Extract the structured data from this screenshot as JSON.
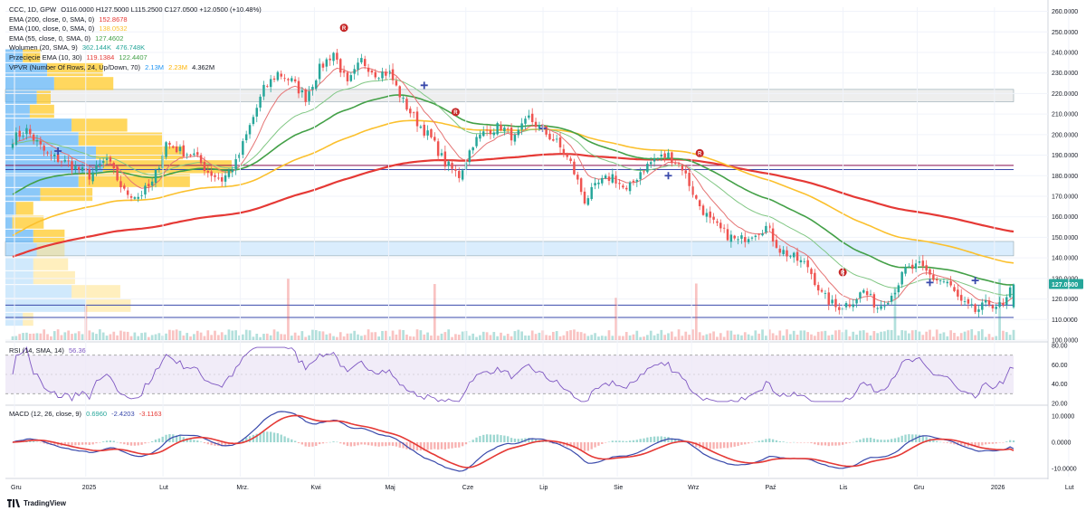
{
  "legend": {
    "main": {
      "label": "CCC, 1D, GPW",
      "ohlc": "O116.0000 H127.5000 L115.2500 C127.0500 +12.0500 (+10.48%)"
    },
    "ema200": {
      "label": "EMA (200, close, 0, SMA, 0)",
      "value": "152.8678",
      "color": "#e53935"
    },
    "ema100": {
      "label": "EMA (100, close, 0, SMA, 0)",
      "value": "138.0532",
      "color": "#fbc02d"
    },
    "ema55": {
      "label": "EMA (55, close, 0, SMA, 0)",
      "value": "127.4602",
      "color": "#43a047"
    },
    "volume": {
      "label": "Wolumen (20, SMA, 9)",
      "v1": "362.144K",
      "v2": "476.748K",
      "color": "#26a69a"
    },
    "cross": {
      "label": "Przecięcie EMA (10, 30)",
      "v1": "119.1384",
      "v2": "122.4407",
      "c1": "#e53935",
      "c2": "#43a047"
    },
    "vpvr": {
      "label": "VPVR (Number Of Rows, 24, Up/Down, 70)",
      "v1": "2.13M",
      "v2": "2.23M",
      "v3": "4.362M"
    }
  },
  "rsi_legend": {
    "label": "RSI (14, SMA, 14)",
    "value": "56.36",
    "color": "#7e57c2"
  },
  "macd_legend": {
    "label": "MACD (12, 26, close, 9)",
    "v1": "0.6960",
    "v2": "-2.4203",
    "v3": "-3.1163"
  },
  "brand": "TradingView",
  "colors": {
    "up": "#26a69a",
    "down": "#ef5350",
    "ema10": "#e57373",
    "ema30": "#81c784",
    "vpvrUp": "#64b5f6",
    "vpvrDown": "#ffca28",
    "rsi": "#7e57c2",
    "macd": "#3949ab",
    "signal": "#e53935"
  },
  "chart_data": [
    {
      "type": "candlestick",
      "symbol": "CCC, 1D, GPW",
      "ylim": [
        100,
        262
      ],
      "y_ticks": [
        100,
        110,
        120,
        130,
        140,
        150,
        160,
        170,
        180,
        190,
        200,
        210,
        220,
        230,
        240,
        250,
        260
      ],
      "y_tick_labels": [
        "100.0000",
        "110.0000",
        "120.0000",
        "130.0000",
        "140.0000",
        "150.0000",
        "160.0000",
        "170.0000",
        "180.0000",
        "190.0000",
        "200.0000",
        "210.0000",
        "220.0000",
        "230.0000",
        "240.0000",
        "250.0000",
        "260.0000"
      ],
      "last_price_label": "127.0500",
      "x_labels": [
        "Gru",
        "2025",
        "Lut",
        "Mrz.",
        "Kwi",
        "Maj",
        "Cze",
        "Lip",
        "Sie",
        "Wrz",
        "Paź",
        "Lis",
        "Gru",
        "2026",
        "Lut"
      ],
      "close_anchors": [
        [
          0,
          198
        ],
        [
          4,
          202
        ],
        [
          10,
          190
        ],
        [
          16,
          186
        ],
        [
          22,
          180
        ],
        [
          27,
          188
        ],
        [
          32,
          172
        ],
        [
          36,
          170
        ],
        [
          40,
          176
        ],
        [
          44,
          196
        ],
        [
          48,
          192
        ],
        [
          52,
          190
        ],
        [
          56,
          182
        ],
        [
          60,
          178
        ],
        [
          64,
          186
        ],
        [
          68,
          204
        ],
        [
          72,
          222
        ],
        [
          76,
          230
        ],
        [
          80,
          226
        ],
        [
          84,
          218
        ],
        [
          88,
          232
        ],
        [
          92,
          240
        ],
        [
          96,
          224
        ],
        [
          100,
          236
        ],
        [
          104,
          230
        ],
        [
          108,
          230
        ],
        [
          112,
          216
        ],
        [
          116,
          206
        ],
        [
          120,
          198
        ],
        [
          124,
          186
        ],
        [
          128,
          180
        ],
        [
          132,
          196
        ],
        [
          136,
          202
        ],
        [
          140,
          204
        ],
        [
          144,
          198
        ],
        [
          148,
          208
        ],
        [
          152,
          202
        ],
        [
          156,
          196
        ],
        [
          160,
          186
        ],
        [
          164,
          168
        ],
        [
          168,
          176
        ],
        [
          172,
          180
        ],
        [
          176,
          172
        ],
        [
          180,
          182
        ],
        [
          184,
          188
        ],
        [
          188,
          190
        ],
        [
          192,
          184
        ],
        [
          196,
          168
        ],
        [
          200,
          158
        ],
        [
          204,
          152
        ],
        [
          208,
          148
        ],
        [
          212,
          152
        ],
        [
          216,
          155
        ],
        [
          220,
          144
        ],
        [
          224,
          140
        ],
        [
          228,
          136
        ],
        [
          232,
          122
        ],
        [
          236,
          116
        ],
        [
          240,
          118
        ],
        [
          244,
          124
        ],
        [
          248,
          116
        ],
        [
          252,
          122
        ],
        [
          256,
          134
        ],
        [
          260,
          136
        ],
        [
          264,
          130
        ],
        [
          268,
          128
        ],
        [
          272,
          118
        ],
        [
          276,
          114
        ],
        [
          280,
          118
        ],
        [
          284,
          116
        ],
        [
          287,
          127.05
        ]
      ],
      "ema200_series": {
        "name": "EMA 200",
        "last": 152.8678
      },
      "ema100_series": {
        "name": "EMA 100",
        "last": 138.0532
      },
      "ema55_series": {
        "name": "EMA 55",
        "last": 127.4602
      },
      "horizontal_levels": [
        {
          "price": 185,
          "color": "#880e4f"
        },
        {
          "price": 183,
          "color": "#3949ab"
        },
        {
          "price": 117,
          "color": "#3949ab"
        },
        {
          "price": 111,
          "color": "#3949ab"
        }
      ],
      "zones": [
        {
          "from": 141,
          "to": 148,
          "color": "#bbdefb"
        },
        {
          "from": 216,
          "to": 222,
          "color": "#e0e0e0"
        }
      ],
      "markers": [
        {
          "i": 95,
          "price": 252,
          "kind": "R"
        },
        {
          "i": 127,
          "price": 211,
          "kind": "R"
        },
        {
          "i": 197,
          "price": 191,
          "kind": "R"
        },
        {
          "i": 238,
          "price": 133,
          "kind": "R"
        },
        {
          "i": 13,
          "price": 192,
          "kind": "plus"
        },
        {
          "i": 118,
          "price": 224,
          "kind": "plus"
        },
        {
          "i": 152,
          "price": 203,
          "kind": "plus"
        },
        {
          "i": 188,
          "price": 180,
          "kind": "plus"
        },
        {
          "i": 263,
          "price": 128,
          "kind": "plus"
        },
        {
          "i": 276,
          "price": 129,
          "kind": "plus"
        }
      ]
    },
    {
      "type": "line",
      "name": "RSI (14, SMA, 14)",
      "ylim": [
        20,
        80
      ],
      "y_ticks": [
        20,
        40,
        60,
        80
      ],
      "y_tick_labels": [
        "20.00",
        "40.00",
        "60.00",
        "80.00"
      ],
      "bands": [
        30,
        70
      ],
      "last": 56.36
    },
    {
      "type": "line",
      "name": "MACD (12, 26, close, 9)",
      "ylim": [
        -13,
        13
      ],
      "y_ticks": [
        -10,
        0,
        10
      ],
      "y_tick_labels": [
        "-10.0000",
        "0.0000",
        "10.0000"
      ],
      "last": {
        "histogram": 0.696,
        "macd": -2.4203,
        "signal": -3.1163
      }
    }
  ]
}
